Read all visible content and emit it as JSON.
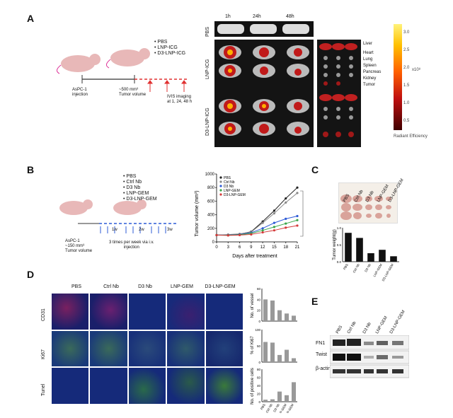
{
  "panels": {
    "A": "A",
    "B": "B",
    "C": "C",
    "D": "D",
    "E": "E"
  },
  "panelA": {
    "legend": [
      "PBS",
      "LNP-ICG",
      "D3-LNP-ICG"
    ],
    "timeline": {
      "start": "AsPC-1\ninjection",
      "mid": "~500 mm³\nTumor volume",
      "imaging": "IVIS imaging\nat 1, 24, 48 h"
    },
    "times": [
      "1h",
      "24h",
      "48h"
    ],
    "rows": [
      "PBS",
      "LNP-ICG",
      "D3-LNP-ICG"
    ],
    "organs": [
      "Liver",
      "Heart",
      "Lung",
      "Spleen",
      "Pancreas",
      "Kidney",
      "Tumor"
    ],
    "colorbar": {
      "ticks": [
        "3.0",
        "2.5",
        "2.0",
        "1.5",
        "1.0",
        "0.5"
      ],
      "exp": "x10⁸",
      "unit": "Radiant Efficiency"
    }
  },
  "panelB": {
    "legend": [
      "PBS",
      "Ctrl Nb",
      "D3 Nb",
      "LNP-GEM",
      "D3-LNP-GEM"
    ],
    "timeline": {
      "start": "AsPC-1\n~150 mm³\nTumor volume",
      "weeks": [
        "1w",
        "2w",
        "3w"
      ],
      "note": "3 times per week via i.v.\ninjection"
    }
  },
  "chart_data": [
    {
      "type": "line",
      "ylabel": "Tumor volume (mm³)",
      "xlabel": "Days after treatment",
      "x": [
        0,
        3,
        6,
        9,
        12,
        15,
        18,
        21
      ],
      "ylim": [
        0,
        1000
      ],
      "yticks": [
        0,
        200,
        400,
        600,
        800,
        1000
      ],
      "series": [
        {
          "name": "PBS",
          "color": "#222222",
          "values": [
            100,
            105,
            115,
            150,
            300,
            460,
            640,
            800
          ]
        },
        {
          "name": "Ctrl Nb",
          "color": "#888888",
          "values": [
            100,
            108,
            118,
            145,
            280,
            420,
            580,
            720
          ]
        },
        {
          "name": "D3 Nb",
          "color": "#2e5bd6",
          "values": [
            100,
            100,
            110,
            135,
            200,
            280,
            340,
            380
          ]
        },
        {
          "name": "LNP-GEM",
          "color": "#3aa64a",
          "values": [
            100,
            98,
            105,
            125,
            170,
            220,
            270,
            320
          ]
        },
        {
          "name": "D3-LNP-GEM",
          "color": "#d43a3a",
          "values": [
            100,
            95,
            100,
            110,
            140,
            170,
            210,
            240
          ]
        }
      ]
    },
    {
      "type": "bar",
      "ylabel": "Tumor weight(g)",
      "categories": [
        "PBS",
        "Ctrl Nb",
        "D3 Nb",
        "LNP-GEM",
        "D3-LNP-GEM"
      ],
      "values": [
        0.85,
        0.7,
        0.25,
        0.35,
        0.16
      ],
      "ylim": [
        0,
        1.0
      ],
      "yticks": [
        "1.0",
        "0.5",
        "0.0"
      ]
    },
    {
      "type": "bar",
      "ylabel": "No. of vessel",
      "categories": [
        "PBS",
        "Ctrl Nb",
        "D3 Nb",
        "LNP-GEM",
        "D3-LNP-GEM"
      ],
      "values": [
        40,
        38,
        20,
        14,
        10
      ],
      "ylim": [
        0,
        60
      ],
      "yticks": [
        "60",
        "40",
        "20",
        "0"
      ]
    },
    {
      "type": "bar",
      "ylabel": "% of Ki67",
      "categories": [
        "PBS",
        "Ctrl Nb",
        "D3 Nb",
        "LNP-GEM",
        "D3-LNP-GEM"
      ],
      "values": [
        62,
        60,
        22,
        38,
        12
      ],
      "ylim": [
        0,
        100
      ],
      "yticks": [
        "100",
        "50",
        "0"
      ]
    },
    {
      "type": "bar",
      "ylabel": "No. of positive cells",
      "categories": [
        "PBS",
        "Ctrl Nb",
        "D3 Nb",
        "LNP-GEM",
        "D3-LNP-GEM"
      ],
      "values": [
        5,
        6,
        25,
        16,
        48
      ],
      "ylim": [
        0,
        80
      ],
      "yticks": [
        "80",
        "60",
        "40",
        "20",
        "0"
      ]
    }
  ],
  "panelC": {
    "photoLabels": [
      "PBS",
      "Ctrl Nb",
      "D3 Nb",
      "LNP-GEM",
      "D3-LNP-GEM"
    ]
  },
  "panelD": {
    "columns": [
      "PBS",
      "Ctrl Nb",
      "D3 Nb",
      "LNP-GEM",
      "D3-LNP-GEM"
    ],
    "rows": [
      "CD31",
      "Ki67",
      "Tunel"
    ]
  },
  "panelE": {
    "columns": [
      "PBS",
      "Ctrl Nb",
      "D3 Nb",
      "LNP-GEM",
      "D3-LNP-GEM"
    ],
    "rows": [
      "FN1",
      "Twist",
      "β-actin"
    ]
  }
}
